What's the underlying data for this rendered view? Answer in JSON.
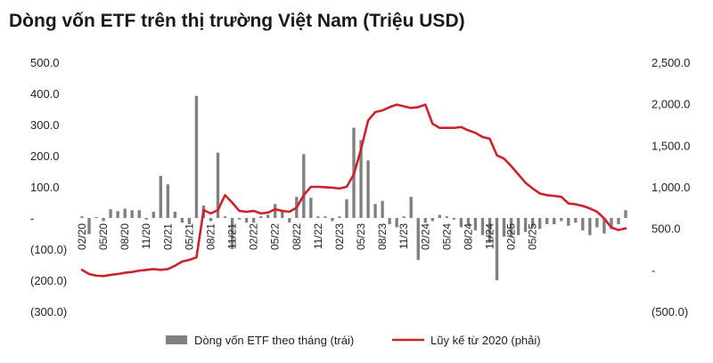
{
  "chart_data": {
    "type": "bar+line",
    "title": "Dòng vốn ETF trên thị trường Việt Nam (Triệu USD)",
    "left_axis": {
      "range": [
        -300,
        500
      ],
      "ticks": [
        "500.0",
        "400.0",
        "300.0",
        "200.0",
        "100.0",
        "-",
        "(100.0)",
        "(200.0)",
        "(300.0)"
      ]
    },
    "right_axis": {
      "range": [
        -500,
        2500
      ],
      "ticks": [
        "2,500.0",
        "2,000.0",
        "1,500.0",
        "1,000.0",
        "500.0",
        "-",
        "(500.0)"
      ]
    },
    "x_start": "02/20",
    "x_tick_labels": [
      "02/20",
      "05/20",
      "08/20",
      "11/20",
      "02/21",
      "05/21",
      "08/21",
      "11/21",
      "02/22",
      "05/22",
      "08/22",
      "11/22",
      "02/23",
      "05/23",
      "08/23",
      "11/23",
      "02/24",
      "05/24",
      "08/24",
      "11/24",
      "02/25",
      "05/25"
    ],
    "legend": {
      "position": "bottom",
      "bar_label": "Dòng vốn ETF theo tháng (trái)",
      "line_label": "Lũy kế từ 2020 (phải)"
    },
    "colors": {
      "bar": "#808080",
      "line": "#d0202a"
    },
    "series": [
      {
        "name": "Dòng vốn ETF theo tháng (trái)",
        "kind": "bar",
        "axis": "left",
        "values": [
          5,
          -52,
          3,
          -10,
          28,
          22,
          30,
          25,
          25,
          -5,
          20,
          135,
          108,
          20,
          -15,
          -20,
          392,
          40,
          -10,
          210,
          5,
          -100,
          -5,
          -15,
          -15,
          5,
          10,
          45,
          20,
          -15,
          68,
          205,
          65,
          5,
          5,
          -10,
          5,
          60,
          290,
          250,
          185,
          45,
          55,
          -20,
          -30,
          5,
          68,
          -135,
          -15,
          -10,
          10,
          5,
          -5,
          -30,
          -25,
          -40,
          -55,
          -80,
          -200,
          -60,
          -60,
          -55,
          -45,
          -30,
          -35,
          -20,
          -20,
          -10,
          -25,
          -15,
          -40,
          -55,
          -30,
          -50,
          -35,
          -20,
          25
        ]
      },
      {
        "name": "Lũy kế từ 2020 (phải)",
        "kind": "line",
        "axis": "right",
        "values": [
          0,
          -50,
          -70,
          -75,
          -60,
          -50,
          -35,
          -25,
          -10,
          0,
          10,
          0,
          10,
          50,
          100,
          120,
          150,
          720,
          680,
          720,
          900,
          810,
          710,
          700,
          710,
          680,
          690,
          730,
          710,
          700,
          750,
          900,
          1000,
          1000,
          995,
          990,
          980,
          1000,
          1150,
          1450,
          1800,
          1900,
          1920,
          1960,
          1990,
          1970,
          1950,
          1960,
          1990,
          1760,
          1710,
          1710,
          1710,
          1720,
          1680,
          1650,
          1600,
          1580,
          1380,
          1340,
          1250,
          1150,
          1050,
          980,
          920,
          900,
          890,
          880,
          800,
          790,
          770,
          740,
          700,
          620,
          510,
          480,
          500
        ]
      }
    ]
  }
}
